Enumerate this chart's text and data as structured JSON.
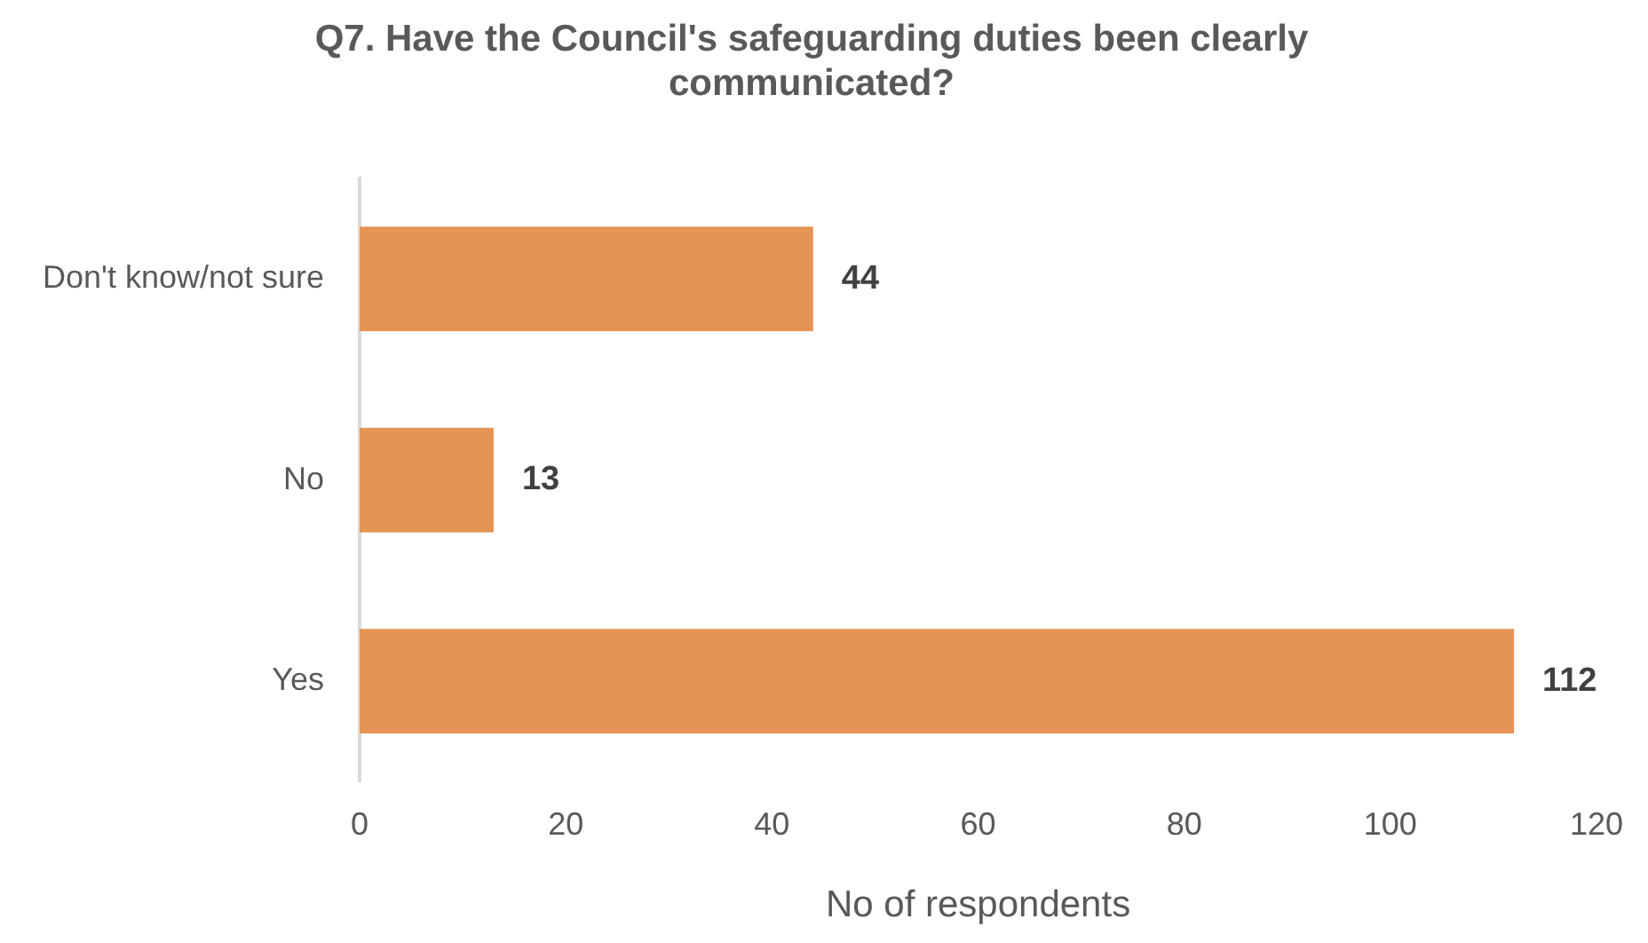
{
  "chart_data": {
    "type": "bar",
    "orientation": "horizontal",
    "title": "Q7. Have the Council's safeguarding duties been clearly communicated?",
    "xlabel": "No of respondents",
    "categories": [
      "Don't know/not sure",
      "No",
      "Yes"
    ],
    "values": [
      44,
      13,
      112
    ],
    "color": "#e59455",
    "xlim": [
      0,
      120
    ],
    "xticks": [
      0,
      20,
      40,
      60,
      80,
      100,
      120
    ],
    "grid": false,
    "legend": false,
    "data_labels": true
  }
}
